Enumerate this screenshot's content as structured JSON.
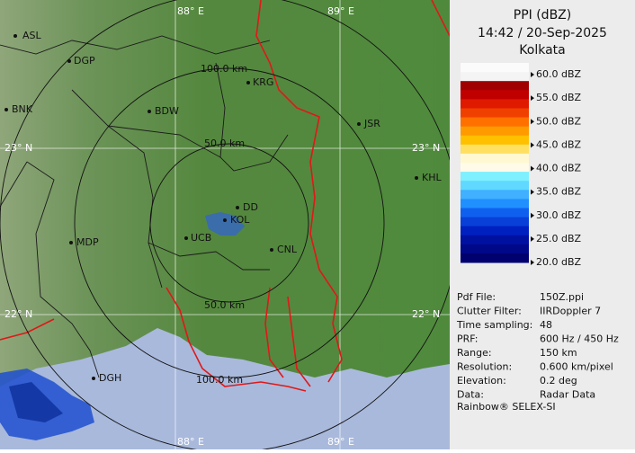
{
  "header": {
    "title": "PPI (dBZ)",
    "time": "14:42 / 20-Sep-2025",
    "site": "Kolkata"
  },
  "legend": {
    "labels": [
      "60.0 dBZ",
      "55.0 dBZ",
      "50.0 dBZ",
      "45.0 dBZ",
      "40.0 dBZ",
      "35.0 dBZ",
      "30.0 dBZ",
      "25.0 dBZ",
      "20.0 dBZ"
    ]
  },
  "info": {
    "rows": [
      [
        "Pdf File:",
        "150Z.ppi"
      ],
      [
        "Clutter Filter:",
        "IIRDoppler 7"
      ],
      [
        "Time sampling:",
        "48"
      ],
      [
        "PRF:",
        "600 Hz / 450 Hz"
      ],
      [
        "Range:",
        "150 km"
      ],
      [
        "Resolution:",
        "0.600 km/pixel"
      ],
      [
        "Elevation:",
        "0.2 deg"
      ],
      [
        "Data:",
        "Radar Data"
      ]
    ]
  },
  "footer": "Rainbow® SELEX-SI",
  "map": {
    "places": [
      "ASL",
      "DGP",
      "KRG",
      "BDW",
      "BNK",
      "JSR",
      "KHL",
      "DD",
      "KOL",
      "UCB",
      "MDP",
      "CNL",
      "DGH"
    ],
    "ring_labels": [
      "50.0 km",
      "100.0 km",
      "50.0 km",
      "100.0 km"
    ],
    "grid_labels": [
      "88° E",
      "89° E",
      "23° N",
      "23° N",
      "22° N",
      "22° N",
      "88° E",
      "89° E"
    ]
  }
}
